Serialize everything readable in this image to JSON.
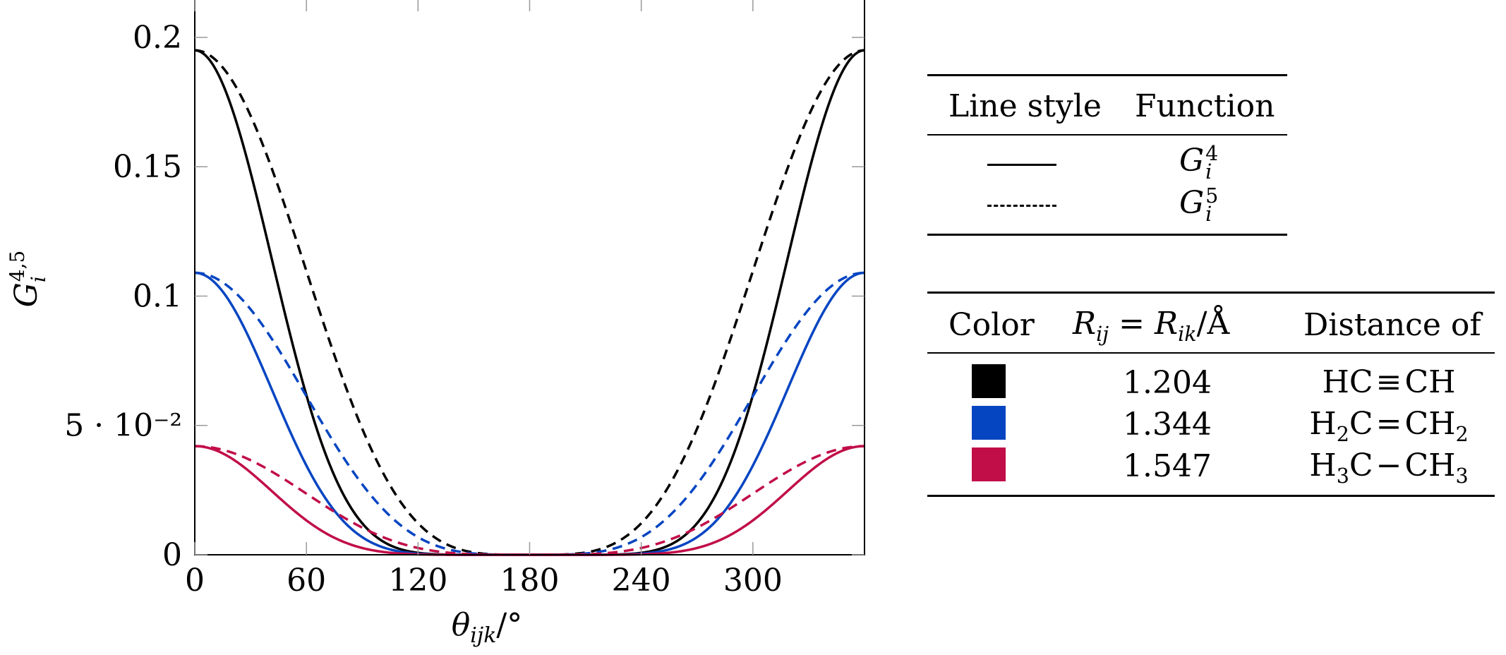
{
  "chart_data": {
    "type": "line",
    "xlabel": "θ_ijk/°",
    "ylabel": "G_i^4,5",
    "xlim": [
      0,
      360
    ],
    "ylim": [
      0,
      0.215
    ],
    "x_ticks": [
      0,
      60,
      120,
      180,
      240,
      300
    ],
    "x_tick_labels": [
      "0",
      "60",
      "120",
      "180",
      "240",
      "300"
    ],
    "y_ticks": [
      0,
      0.05,
      0.1,
      0.15,
      0.2
    ],
    "y_tick_labels": [
      "0",
      "5 · 10⁻²",
      "0.1",
      "0.15",
      "0.2"
    ],
    "grid": false,
    "series": [
      {
        "function": "G4",
        "color": "#000000",
        "style": "solid",
        "amplitude": 0.195,
        "exponent": 4
      },
      {
        "function": "G5",
        "color": "#000000",
        "style": "dashed",
        "amplitude": 0.195,
        "exponent": 2
      },
      {
        "function": "G4",
        "color": "#0645c2",
        "style": "solid",
        "amplitude": 0.109,
        "exponent": 4
      },
      {
        "function": "G5",
        "color": "#0645c2",
        "style": "dashed",
        "amplitude": 0.109,
        "exponent": 2
      },
      {
        "function": "G4",
        "color": "#c10e48",
        "style": "solid",
        "amplitude": 0.042,
        "exponent": 4
      },
      {
        "function": "G5",
        "color": "#c10e48",
        "style": "dashed",
        "amplitude": 0.042,
        "exponent": 2
      }
    ]
  },
  "legend_style": {
    "header_line_style": "Line style",
    "header_function": "Function",
    "rows": [
      {
        "style": "solid",
        "fn_base": "G",
        "fn_sub": "i",
        "fn_sup": "4"
      },
      {
        "style": "dashed",
        "fn_base": "G",
        "fn_sub": "i",
        "fn_sup": "5"
      }
    ]
  },
  "legend_color": {
    "header_color": "Color",
    "header_r_lhs": "R",
    "header_r_sub1": "ij",
    "header_r_eq": " = ",
    "header_r_sub2": "ik",
    "header_r_unit": "/Å",
    "header_distance": "Distance of",
    "rows": [
      {
        "color": "#000000",
        "r": "1.204",
        "molecule_parts": [
          "HC",
          "≡",
          "CH"
        ],
        "molecule_subs": [
          "",
          "",
          ""
        ]
      },
      {
        "color": "#0645c2",
        "r": "1.344",
        "molecule_parts": [
          "H",
          "2",
          "C",
          "=",
          "CH",
          "2"
        ]
      },
      {
        "color": "#c10e48",
        "r": "1.547",
        "molecule_parts": [
          "H",
          "3",
          "C",
          "−",
          "CH",
          "3"
        ]
      }
    ]
  }
}
